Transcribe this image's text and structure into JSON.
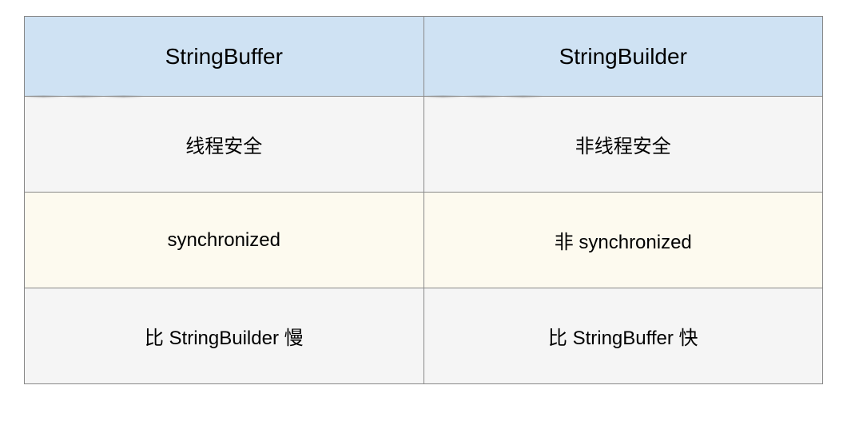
{
  "table": {
    "type": "table",
    "columns": [
      "StringBuffer",
      "StringBuilder"
    ],
    "rows": [
      [
        "线程安全",
        "非线程安全"
      ],
      [
        "synchronized",
        "非 synchronized"
      ],
      [
        "比 StringBuilder 慢",
        "比 StringBuffer 快"
      ]
    ],
    "header_bg_color": "#cfe2f3",
    "row_bg_colors": [
      "#f5f5f5",
      "#fdfaef",
      "#f5f5f5"
    ],
    "border_color": "#888888",
    "text_color": "#000000",
    "header_fontsize": 28,
    "cell_fontsize": 24,
    "column_widths": [
      "50%",
      "50%"
    ]
  }
}
